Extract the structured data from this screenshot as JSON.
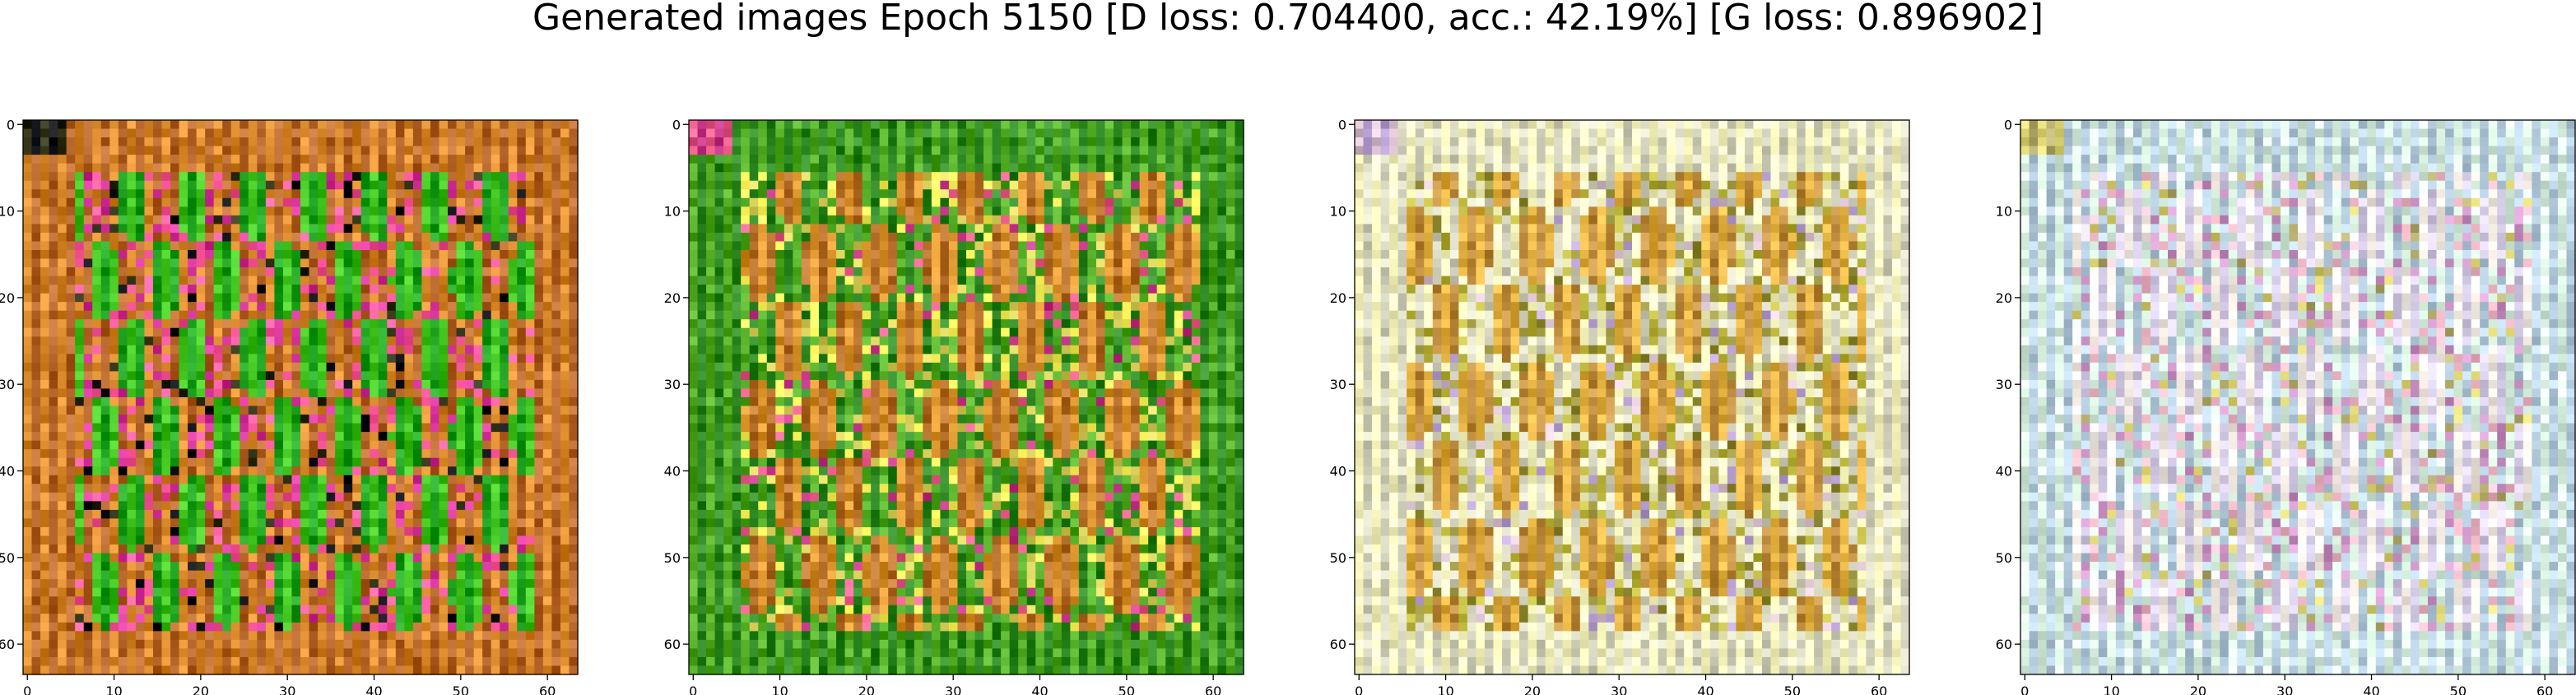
{
  "figure": {
    "title": "Generated images Epoch 5150 [D loss: 0.704400, acc.: 42.19%] [G loss: 0.896902]"
  },
  "chart_data": [
    {
      "type": "heatmap",
      "xlim": [
        -0.5,
        63.5
      ],
      "ylim": [
        63.5,
        -0.5
      ],
      "xticks": [
        0,
        10,
        20,
        30,
        40,
        50,
        60
      ],
      "yticks": [
        0,
        10,
        20,
        30,
        40,
        50,
        60
      ],
      "tick_labels": [
        "0",
        "10",
        "20",
        "30",
        "40",
        "50",
        "60"
      ],
      "dominant_colors": [
        "#2fb21d",
        "#c8782a",
        "#e8459a",
        "#1a1a10"
      ],
      "grid": false
    },
    {
      "type": "heatmap",
      "xlim": [
        -0.5,
        63.5
      ],
      "ylim": [
        63.5,
        -0.5
      ],
      "xticks": [
        0,
        10,
        20,
        30,
        40,
        50,
        60
      ],
      "yticks": [
        0,
        10,
        20,
        30,
        40,
        50,
        60
      ],
      "tick_labels": [
        "0",
        "10",
        "20",
        "30",
        "40",
        "50",
        "60"
      ],
      "dominant_colors": [
        "#c9832c",
        "#3f9a23",
        "#e8e05a",
        "#d94a8a"
      ],
      "grid": false
    },
    {
      "type": "heatmap",
      "xlim": [
        -0.5,
        63.5
      ],
      "ylim": [
        63.5,
        -0.5
      ],
      "xticks": [
        0,
        10,
        20,
        30,
        40,
        50,
        60
      ],
      "yticks": [
        0,
        10,
        20,
        30,
        40,
        50,
        60
      ],
      "tick_labels": [
        "0",
        "10",
        "20",
        "30",
        "40",
        "50",
        "60"
      ],
      "dominant_colors": [
        "#d2a040",
        "#e8e8c0",
        "#a8a23a",
        "#c8b0d0"
      ],
      "grid": false
    },
    {
      "type": "heatmap",
      "xlim": [
        -0.5,
        63.5
      ],
      "ylim": [
        63.5,
        -0.5
      ],
      "xticks": [
        0,
        10,
        20,
        30,
        40,
        50,
        60
      ],
      "yticks": [
        0,
        10,
        20,
        30,
        40,
        50,
        60
      ],
      "tick_labels": [
        "0",
        "10",
        "20",
        "30",
        "40",
        "50",
        "60"
      ],
      "dominant_colors": [
        "#e8dfe8",
        "#c8e0e0",
        "#e0a8c8",
        "#c8c070"
      ],
      "grid": false
    }
  ]
}
